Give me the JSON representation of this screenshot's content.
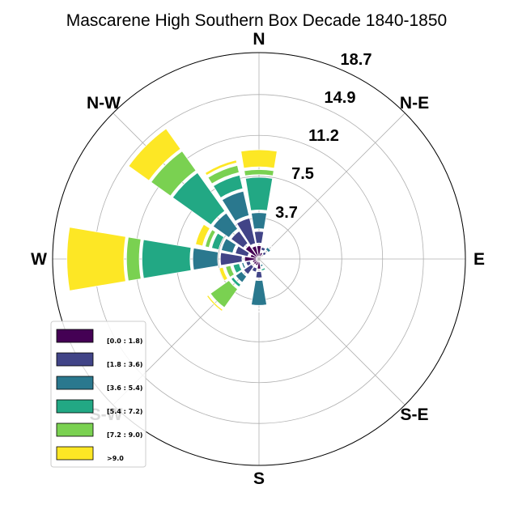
{
  "chart_data": {
    "type": "windrose",
    "title": "Mascarene High Southern Box Decade 1840-1850",
    "directions": [
      "N",
      "N-E",
      "E",
      "S-E",
      "S",
      "S-W",
      "W",
      "N-W"
    ],
    "radial_ticks": [
      "3.7",
      "7.5",
      "11.2",
      "14.9",
      "18.7"
    ],
    "radial_tick_values": [
      3.7,
      7.5,
      11.2,
      14.9,
      18.7
    ],
    "radial_max": 18.7,
    "grid": true,
    "legend_position": "lower-left",
    "sector_angles_deg": [
      0,
      22.5,
      45,
      67.5,
      90,
      112.5,
      135,
      157.5,
      180,
      202.5,
      225,
      247.5,
      270,
      292.5,
      315,
      337.5
    ],
    "bins": [
      {
        "label": "[0.0 : 1.8)",
        "color": "#440154"
      },
      {
        "label": "[1.8 : 3.6)",
        "color": "#414487"
      },
      {
        "label": "[3.6 : 5.4)",
        "color": "#2a788e"
      },
      {
        "label": "[5.4 : 7.2)",
        "color": "#22a884"
      },
      {
        "label": "[7.2 : 9.0)",
        "color": "#7ad151"
      },
      {
        "label": ">9.0",
        "color": "#fde725"
      }
    ],
    "sectors": [
      [
        1.2,
        1.3,
        1.7,
        3.2,
        0.7,
        1.8
      ],
      [
        0.6,
        0.5,
        0.3,
        0.2,
        0.1,
        0.0
      ],
      [
        0.3,
        0.5,
        0.5,
        0.3,
        0.0,
        0.0
      ],
      [
        0.2,
        0.1,
        0.1,
        0.1,
        0.0,
        0.0
      ],
      [
        0.1,
        0.1,
        0.1,
        0.1,
        0.1,
        0.0
      ],
      [
        0.1,
        0.1,
        0.1,
        0.0,
        0.0,
        0.0
      ],
      [
        0.1,
        0.1,
        0.0,
        0.0,
        0.0,
        0.0
      ],
      [
        0.1,
        0.2,
        0.4,
        0.4,
        0.1,
        0.3
      ],
      [
        0.9,
        0.8,
        2.5,
        0.3,
        0.3,
        0.0
      ],
      [
        0.6,
        0.6,
        0.3,
        0.1,
        0.0,
        0.0
      ],
      [
        0.6,
        1.1,
        0.9,
        0.5,
        2.3,
        0.4
      ],
      [
        0.6,
        0.6,
        0.4,
        0.8,
        0.7,
        0.6
      ],
      [
        1.3,
        2.2,
        2.5,
        4.6,
        1.4,
        5.4
      ],
      [
        0.8,
        1.4,
        1.3,
        0.9,
        0.6,
        0.9
      ],
      [
        1.5,
        1.6,
        2.0,
        4.5,
        2.4,
        2.5
      ],
      [
        1.2,
        2.6,
        2.5,
        1.5,
        0.9,
        0.5
      ]
    ]
  }
}
